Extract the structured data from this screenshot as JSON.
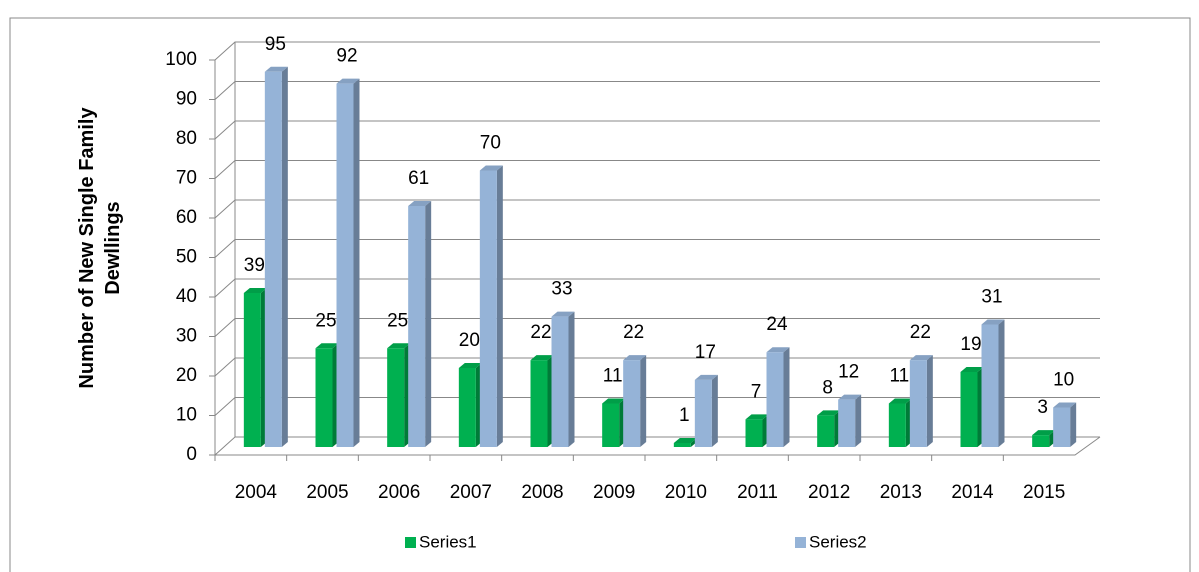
{
  "chart_data": {
    "type": "bar3d",
    "y_label": "Number of New Single Family Dewllings",
    "categories": [
      "2004",
      "2005",
      "2006",
      "2007",
      "2008",
      "2009",
      "2010",
      "2011",
      "2012",
      "2013",
      "2014",
      "2015"
    ],
    "series": [
      {
        "name": "Series1",
        "color": "#00b050",
        "values": [
          39,
          25,
          25,
          20,
          22,
          11,
          1,
          7,
          8,
          11,
          19,
          3
        ]
      },
      {
        "name": "Series2",
        "color": "#95b3d7",
        "values": [
          95,
          92,
          61,
          70,
          33,
          22,
          17,
          24,
          12,
          22,
          31,
          10
        ]
      }
    ],
    "ylim": [
      0,
      100
    ],
    "yticks": [
      0,
      10,
      20,
      30,
      40,
      50,
      60,
      70,
      80,
      90,
      100
    ],
    "grid": true
  }
}
